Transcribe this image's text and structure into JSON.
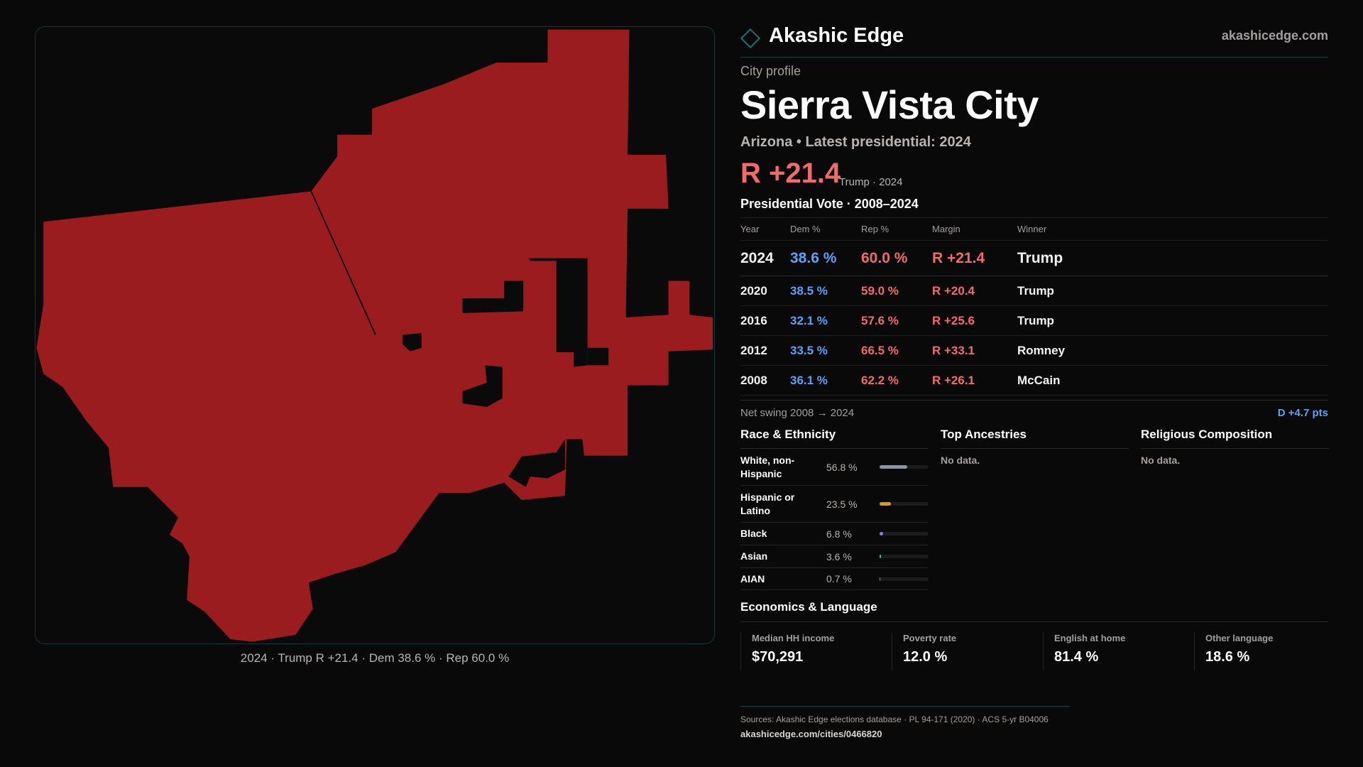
{
  "brand": {
    "name": "Akashic Edge",
    "site": "akashicedge.com"
  },
  "profile": {
    "kicker": "City profile",
    "title": "Sierra Vista City",
    "subtitle": "Arizona • Latest presidential: 2024",
    "margin": "R +21.4",
    "margin_note": "Trump · 2024"
  },
  "map": {
    "caption": "2024 · Trump R +21.4 · Dem 38.6 % · Rep 60.0 %",
    "fill_color": "#9b1c1f"
  },
  "presidential": {
    "heading": "Presidential Vote · 2008–2024",
    "columns": [
      "Year",
      "Dem %",
      "Rep %",
      "Margin",
      "Winner"
    ],
    "rows": [
      {
        "year": "2024",
        "dem": "38.6 %",
        "rep": "60.0 %",
        "margin": "R +21.4",
        "winner": "Trump"
      },
      {
        "year": "2020",
        "dem": "38.5 %",
        "rep": "59.0 %",
        "margin": "R +20.4",
        "winner": "Trump"
      },
      {
        "year": "2016",
        "dem": "32.1 %",
        "rep": "57.6 %",
        "margin": "R +25.6",
        "winner": "Trump"
      },
      {
        "year": "2012",
        "dem": "33.5 %",
        "rep": "66.5 %",
        "margin": "R +33.1",
        "winner": "Romney"
      },
      {
        "year": "2008",
        "dem": "36.1 %",
        "rep": "62.2 %",
        "margin": "R +26.1",
        "winner": "McCain"
      }
    ],
    "swing_label": "Net swing 2008 → 2024",
    "swing_value": "D +4.7 pts"
  },
  "race": {
    "heading": "Race & Ethnicity",
    "rows": [
      {
        "label": "White, non-Hispanic",
        "pct": "56.8 %",
        "value": 56.8,
        "color": "#8a94a6"
      },
      {
        "label": "Hispanic or Latino",
        "pct": "23.5 %",
        "value": 23.5,
        "color": "#d99a1c"
      },
      {
        "label": "Black",
        "pct": "6.8 %",
        "value": 6.8,
        "color": "#8f78e0"
      },
      {
        "label": "Asian",
        "pct": "3.6 %",
        "value": 3.6,
        "color": "#2fbf8a"
      },
      {
        "label": "AIAN",
        "pct": "0.7 %",
        "value": 0.7,
        "color": "#d9731c"
      }
    ]
  },
  "ancestries": {
    "heading": "Top Ancestries",
    "empty": "No data."
  },
  "religion": {
    "heading": "Religious Composition",
    "empty": "No data."
  },
  "economics": {
    "heading": "Economics & Language",
    "cards": [
      {
        "label": "Median HH income",
        "value": "$70,291"
      },
      {
        "label": "Poverty rate",
        "value": "12.0 %"
      },
      {
        "label": "English at home",
        "value": "81.4 %"
      },
      {
        "label": "Other language",
        "value": "18.6 %"
      }
    ]
  },
  "footer": {
    "sources": "Sources: Akashic Edge elections database · PL 94-171 (2020) · ACS 5-yr B04006",
    "url": "akashicedge.com/cities/0466820"
  }
}
